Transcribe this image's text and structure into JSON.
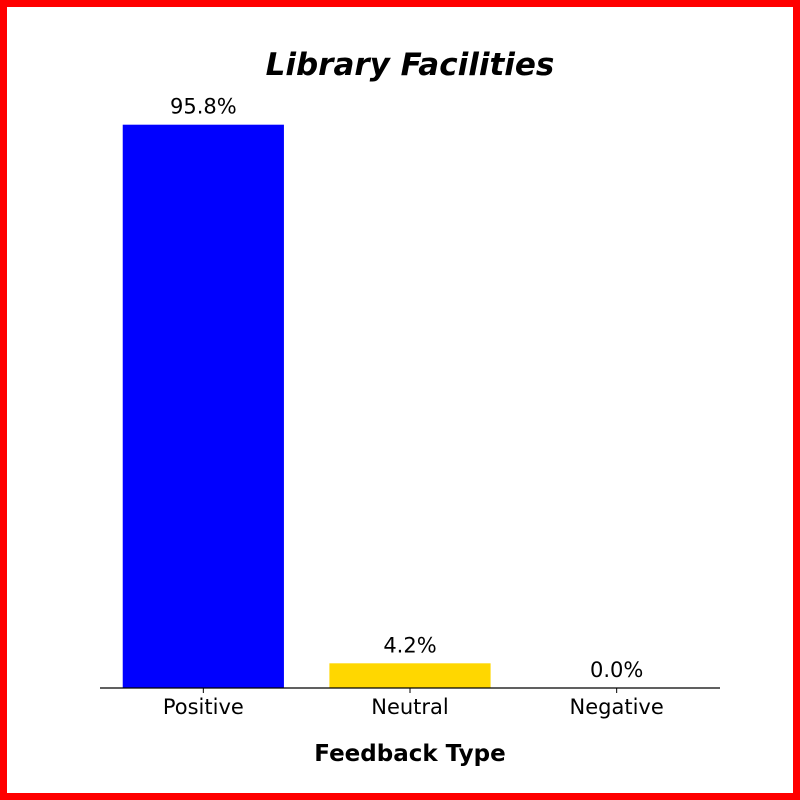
{
  "chart_data": {
    "type": "bar",
    "title": "Library Facilities",
    "xlabel": "Feedback Type",
    "ylabel": "",
    "categories": [
      "Positive",
      "Neutral",
      "Negative"
    ],
    "values": [
      95.8,
      4.2,
      0.0
    ],
    "value_labels": [
      "95.8%",
      "4.2%",
      "0.0%"
    ],
    "colors": [
      "#0000ff",
      "#ffd700",
      "#ff0000"
    ],
    "ylim": [
      0,
      100
    ],
    "grid": false,
    "legend": "none",
    "frame_color": "#ff0000"
  }
}
